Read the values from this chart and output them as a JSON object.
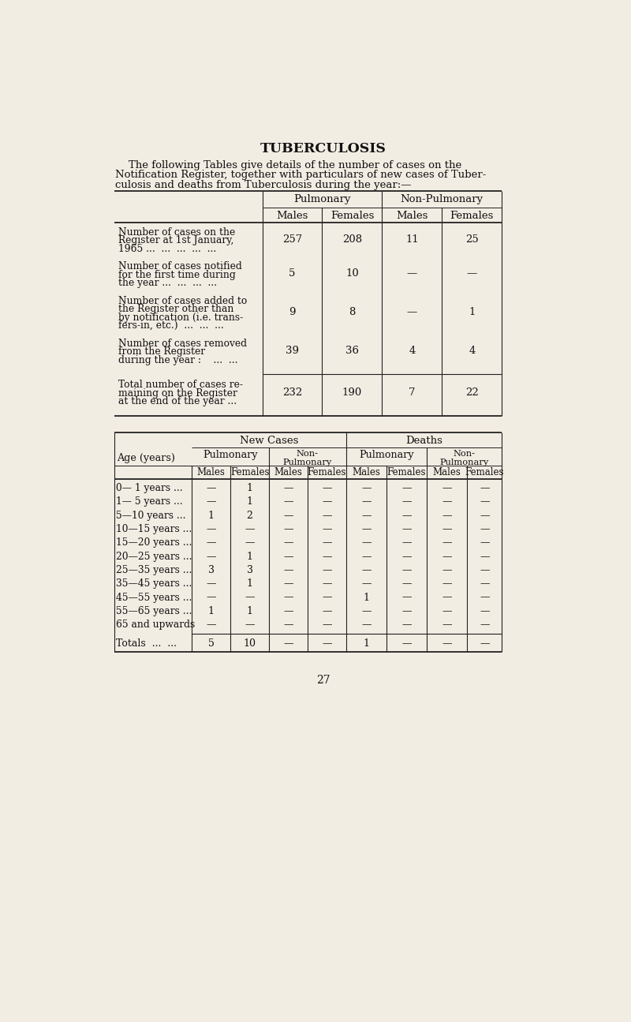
{
  "bg_color": "#f2ede3",
  "title": "TUBERCULOSIS",
  "intro_lines": [
    "    The following Tables give details of the number of cases on the",
    "Notification Register, together with particulars of new cases of Tuber-",
    "culosis and deaths from Tuberculosis during the year:—"
  ],
  "t1_rows": [
    {
      "label": [
        "Number of cases on the",
        "Register at 1st January,",
        "1965 ...  ...  ...  ...  ..."
      ],
      "vals": [
        "257",
        "208",
        "11",
        "25"
      ]
    },
    {
      "label": [
        "Number of cases notified",
        "for the first time during",
        "the year ...  ...  ...  ..."
      ],
      "vals": [
        "5",
        "10",
        "—",
        "—"
      ]
    },
    {
      "label": [
        "Number of cases added to",
        "the Register other than",
        "by notification (i.e. trans-",
        "fers-in, etc.)  ...  ...  ..."
      ],
      "vals": [
        "9",
        "8",
        "—",
        "1"
      ]
    },
    {
      "label": [
        "Number of cases removed",
        "from the Register",
        "during the year :    ...  ..."
      ],
      "vals": [
        "39",
        "36",
        "4",
        "4"
      ]
    }
  ],
  "t1_total": {
    "label": [
      "Total number of cases re-",
      "maining on the Register",
      "at the end of the year ..."
    ],
    "vals": [
      "232",
      "190",
      "7",
      "22"
    ]
  },
  "t2_age_rows": [
    {
      "label": "0— 1 years ...",
      "vals": [
        "—",
        "1",
        "—",
        "—",
        "—",
        "—",
        "—",
        "—"
      ]
    },
    {
      "label": "1— 5 years ...",
      "vals": [
        "—",
        "1",
        "—",
        "—",
        "—",
        "—",
        "—",
        "—"
      ]
    },
    {
      "label": "5—10 years ...",
      "vals": [
        "1",
        "2",
        "—",
        "—",
        "—",
        "—",
        "—",
        "—"
      ]
    },
    {
      "label": "10—15 years ...",
      "vals": [
        "—",
        "—",
        "—",
        "—",
        "—",
        "—",
        "—",
        "—"
      ]
    },
    {
      "label": "15—20 years ...",
      "vals": [
        "—",
        "—",
        "—",
        "—",
        "—",
        "—",
        "—",
        "—"
      ]
    },
    {
      "label": "20—25 years ...",
      "vals": [
        "—",
        "1",
        "—",
        "—",
        "—",
        "—",
        "—",
        "—"
      ]
    },
    {
      "label": "25—35 years ...",
      "vals": [
        "3",
        "3",
        "—",
        "—",
        "—",
        "—",
        "—",
        "—"
      ]
    },
    {
      "label": "35—45 years ...",
      "vals": [
        "—",
        "1",
        "—",
        "—",
        "—",
        "—",
        "—",
        "—"
      ]
    },
    {
      "label": "45—55 years ...",
      "vals": [
        "—",
        "—",
        "—",
        "—",
        "1",
        "—",
        "—",
        "—"
      ]
    },
    {
      "label": "55—65 years ...",
      "vals": [
        "1",
        "1",
        "—",
        "—",
        "—",
        "—",
        "—",
        "—"
      ]
    },
    {
      "label": "65 and upwards",
      "vals": [
        "—",
        "—",
        "—",
        "—",
        "—",
        "—",
        "—",
        "—"
      ]
    }
  ],
  "t2_totals": {
    "label": "Totals  ...  ...",
    "vals": [
      "5",
      "10",
      "—",
      "—",
      "1",
      "—",
      "—",
      "—"
    ]
  },
  "page_number": "27"
}
